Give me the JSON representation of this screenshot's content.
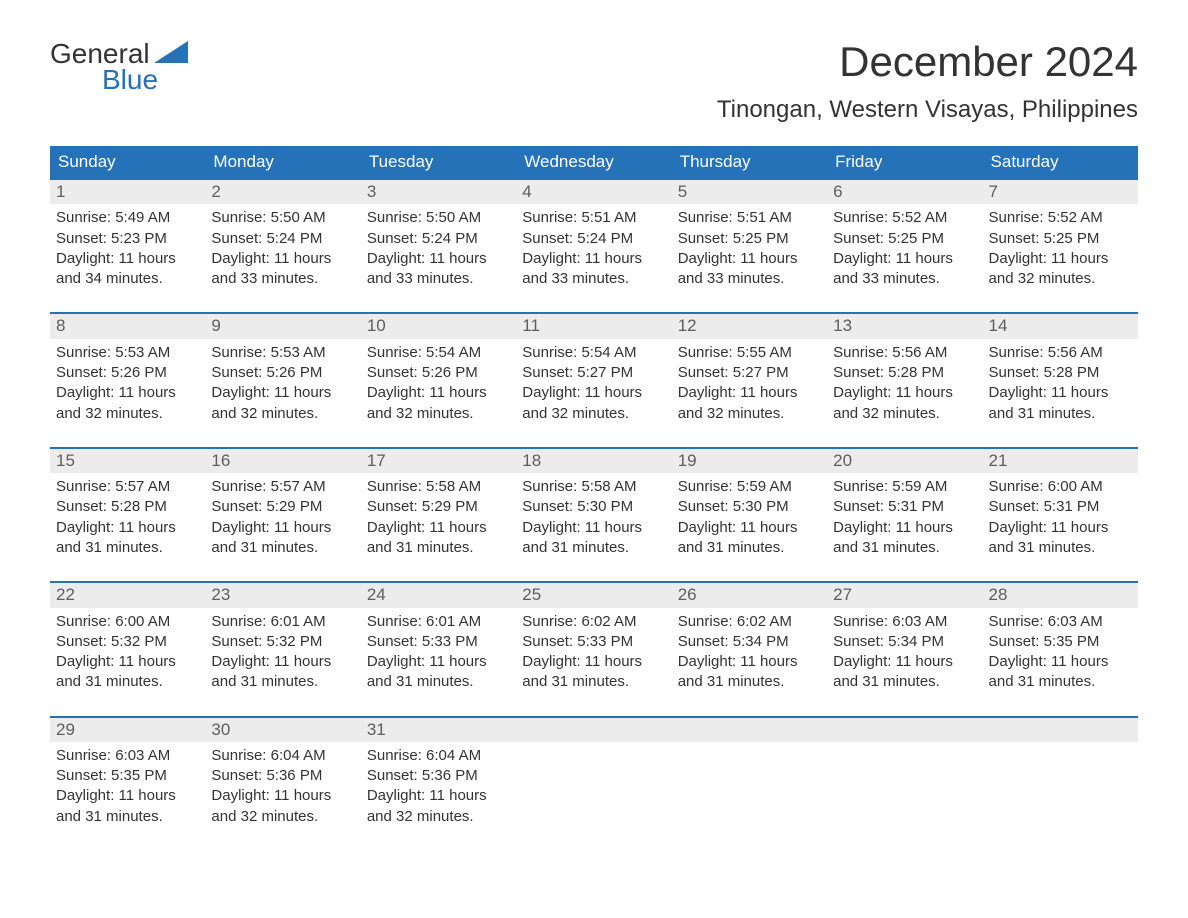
{
  "logo": {
    "word1": "General",
    "word2": "Blue"
  },
  "title": "December 2024",
  "location": "Tinongan, Western Visayas, Philippines",
  "colors": {
    "header_bg": "#2672b8",
    "header_text": "#ffffff",
    "daynum_bg": "#ececec",
    "daynum_text": "#5e5e5e",
    "row_border": "#2672b8",
    "body_text": "#333333",
    "page_bg": "#ffffff",
    "logo_blue": "#2672b8"
  },
  "fonts": {
    "family": "Arial",
    "title_size_pt": 32,
    "location_size_pt": 18,
    "header_size_pt": 13,
    "daynum_size_pt": 13,
    "body_size_pt": 11
  },
  "weekdays": [
    "Sunday",
    "Monday",
    "Tuesday",
    "Wednesday",
    "Thursday",
    "Friday",
    "Saturday"
  ],
  "weeks": [
    [
      {
        "n": "1",
        "sunrise": "Sunrise: 5:49 AM",
        "sunset": "Sunset: 5:23 PM",
        "dl1": "Daylight: 11 hours",
        "dl2": "and 34 minutes."
      },
      {
        "n": "2",
        "sunrise": "Sunrise: 5:50 AM",
        "sunset": "Sunset: 5:24 PM",
        "dl1": "Daylight: 11 hours",
        "dl2": "and 33 minutes."
      },
      {
        "n": "3",
        "sunrise": "Sunrise: 5:50 AM",
        "sunset": "Sunset: 5:24 PM",
        "dl1": "Daylight: 11 hours",
        "dl2": "and 33 minutes."
      },
      {
        "n": "4",
        "sunrise": "Sunrise: 5:51 AM",
        "sunset": "Sunset: 5:24 PM",
        "dl1": "Daylight: 11 hours",
        "dl2": "and 33 minutes."
      },
      {
        "n": "5",
        "sunrise": "Sunrise: 5:51 AM",
        "sunset": "Sunset: 5:25 PM",
        "dl1": "Daylight: 11 hours",
        "dl2": "and 33 minutes."
      },
      {
        "n": "6",
        "sunrise": "Sunrise: 5:52 AM",
        "sunset": "Sunset: 5:25 PM",
        "dl1": "Daylight: 11 hours",
        "dl2": "and 33 minutes."
      },
      {
        "n": "7",
        "sunrise": "Sunrise: 5:52 AM",
        "sunset": "Sunset: 5:25 PM",
        "dl1": "Daylight: 11 hours",
        "dl2": "and 32 minutes."
      }
    ],
    [
      {
        "n": "8",
        "sunrise": "Sunrise: 5:53 AM",
        "sunset": "Sunset: 5:26 PM",
        "dl1": "Daylight: 11 hours",
        "dl2": "and 32 minutes."
      },
      {
        "n": "9",
        "sunrise": "Sunrise: 5:53 AM",
        "sunset": "Sunset: 5:26 PM",
        "dl1": "Daylight: 11 hours",
        "dl2": "and 32 minutes."
      },
      {
        "n": "10",
        "sunrise": "Sunrise: 5:54 AM",
        "sunset": "Sunset: 5:26 PM",
        "dl1": "Daylight: 11 hours",
        "dl2": "and 32 minutes."
      },
      {
        "n": "11",
        "sunrise": "Sunrise: 5:54 AM",
        "sunset": "Sunset: 5:27 PM",
        "dl1": "Daylight: 11 hours",
        "dl2": "and 32 minutes."
      },
      {
        "n": "12",
        "sunrise": "Sunrise: 5:55 AM",
        "sunset": "Sunset: 5:27 PM",
        "dl1": "Daylight: 11 hours",
        "dl2": "and 32 minutes."
      },
      {
        "n": "13",
        "sunrise": "Sunrise: 5:56 AM",
        "sunset": "Sunset: 5:28 PM",
        "dl1": "Daylight: 11 hours",
        "dl2": "and 32 minutes."
      },
      {
        "n": "14",
        "sunrise": "Sunrise: 5:56 AM",
        "sunset": "Sunset: 5:28 PM",
        "dl1": "Daylight: 11 hours",
        "dl2": "and 31 minutes."
      }
    ],
    [
      {
        "n": "15",
        "sunrise": "Sunrise: 5:57 AM",
        "sunset": "Sunset: 5:28 PM",
        "dl1": "Daylight: 11 hours",
        "dl2": "and 31 minutes."
      },
      {
        "n": "16",
        "sunrise": "Sunrise: 5:57 AM",
        "sunset": "Sunset: 5:29 PM",
        "dl1": "Daylight: 11 hours",
        "dl2": "and 31 minutes."
      },
      {
        "n": "17",
        "sunrise": "Sunrise: 5:58 AM",
        "sunset": "Sunset: 5:29 PM",
        "dl1": "Daylight: 11 hours",
        "dl2": "and 31 minutes."
      },
      {
        "n": "18",
        "sunrise": "Sunrise: 5:58 AM",
        "sunset": "Sunset: 5:30 PM",
        "dl1": "Daylight: 11 hours",
        "dl2": "and 31 minutes."
      },
      {
        "n": "19",
        "sunrise": "Sunrise: 5:59 AM",
        "sunset": "Sunset: 5:30 PM",
        "dl1": "Daylight: 11 hours",
        "dl2": "and 31 minutes."
      },
      {
        "n": "20",
        "sunrise": "Sunrise: 5:59 AM",
        "sunset": "Sunset: 5:31 PM",
        "dl1": "Daylight: 11 hours",
        "dl2": "and 31 minutes."
      },
      {
        "n": "21",
        "sunrise": "Sunrise: 6:00 AM",
        "sunset": "Sunset: 5:31 PM",
        "dl1": "Daylight: 11 hours",
        "dl2": "and 31 minutes."
      }
    ],
    [
      {
        "n": "22",
        "sunrise": "Sunrise: 6:00 AM",
        "sunset": "Sunset: 5:32 PM",
        "dl1": "Daylight: 11 hours",
        "dl2": "and 31 minutes."
      },
      {
        "n": "23",
        "sunrise": "Sunrise: 6:01 AM",
        "sunset": "Sunset: 5:32 PM",
        "dl1": "Daylight: 11 hours",
        "dl2": "and 31 minutes."
      },
      {
        "n": "24",
        "sunrise": "Sunrise: 6:01 AM",
        "sunset": "Sunset: 5:33 PM",
        "dl1": "Daylight: 11 hours",
        "dl2": "and 31 minutes."
      },
      {
        "n": "25",
        "sunrise": "Sunrise: 6:02 AM",
        "sunset": "Sunset: 5:33 PM",
        "dl1": "Daylight: 11 hours",
        "dl2": "and 31 minutes."
      },
      {
        "n": "26",
        "sunrise": "Sunrise: 6:02 AM",
        "sunset": "Sunset: 5:34 PM",
        "dl1": "Daylight: 11 hours",
        "dl2": "and 31 minutes."
      },
      {
        "n": "27",
        "sunrise": "Sunrise: 6:03 AM",
        "sunset": "Sunset: 5:34 PM",
        "dl1": "Daylight: 11 hours",
        "dl2": "and 31 minutes."
      },
      {
        "n": "28",
        "sunrise": "Sunrise: 6:03 AM",
        "sunset": "Sunset: 5:35 PM",
        "dl1": "Daylight: 11 hours",
        "dl2": "and 31 minutes."
      }
    ],
    [
      {
        "n": "29",
        "sunrise": "Sunrise: 6:03 AM",
        "sunset": "Sunset: 5:35 PM",
        "dl1": "Daylight: 11 hours",
        "dl2": "and 31 minutes."
      },
      {
        "n": "30",
        "sunrise": "Sunrise: 6:04 AM",
        "sunset": "Sunset: 5:36 PM",
        "dl1": "Daylight: 11 hours",
        "dl2": "and 32 minutes."
      },
      {
        "n": "31",
        "sunrise": "Sunrise: 6:04 AM",
        "sunset": "Sunset: 5:36 PM",
        "dl1": "Daylight: 11 hours",
        "dl2": "and 32 minutes."
      },
      {
        "empty": true
      },
      {
        "empty": true
      },
      {
        "empty": true
      },
      {
        "empty": true
      }
    ]
  ]
}
